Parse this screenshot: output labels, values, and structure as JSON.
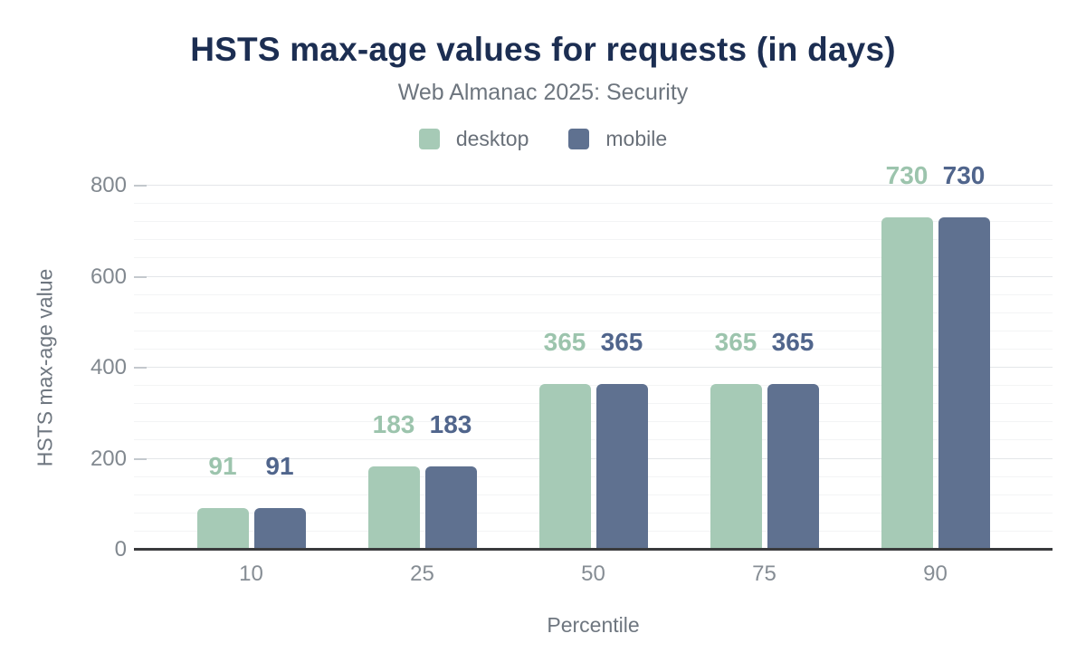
{
  "title": "HSTS max-age values for requests (in days)",
  "subtitle": "Web Almanac 2025: Security",
  "colors": {
    "title": "#1c2e52",
    "subtitle": "#6d757e",
    "axis_line": "#3a3b3d",
    "tick_label": "#81888f",
    "gridline_major": "#e4e6e9",
    "gridline_minor": "#f3f4f5",
    "desktop": "#a6cab6",
    "desktop_label": "#9cc4ad",
    "mobile": "#5f7190",
    "mobile_label": "#50658c"
  },
  "chart_data": {
    "type": "bar",
    "title": "HSTS max-age values for requests (in days)",
    "subtitle": "Web Almanac 2025: Security",
    "categories": [
      "10",
      "25",
      "50",
      "75",
      "90"
    ],
    "series": [
      {
        "name": "desktop",
        "color": "#a6cab6",
        "label_color": "#9cc4ad",
        "values": [
          91,
          183,
          365,
          365,
          730
        ]
      },
      {
        "name": "mobile",
        "color": "#5f7190",
        "label_color": "#50658c",
        "values": [
          91,
          183,
          365,
          365,
          730
        ]
      }
    ],
    "xlabel": "Percentile",
    "ylabel": "HSTS max-age value",
    "ylim": [
      0,
      800
    ],
    "yticks": [
      0,
      200,
      400,
      600,
      800
    ],
    "minor_grid_step": 40,
    "grid": true,
    "legend_position": "top",
    "value_labels": true
  }
}
